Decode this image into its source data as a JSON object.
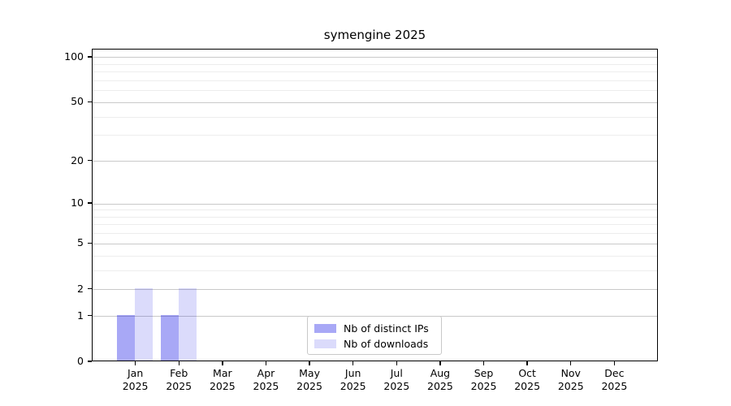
{
  "title": "symengine 2025",
  "chart_data": {
    "type": "bar",
    "title": "symengine 2025",
    "x_tick_months": [
      "Jan",
      "Feb",
      "Mar",
      "Apr",
      "May",
      "Jun",
      "Jul",
      "Aug",
      "Sep",
      "Oct",
      "Nov",
      "Dec"
    ],
    "x_tick_year": "2025",
    "series": [
      {
        "name": "Nb of distinct IPs",
        "fill": "rgba(0,0,230,0.34)",
        "values": [
          1,
          1,
          0,
          0,
          0,
          0,
          0,
          0,
          0,
          0,
          0,
          0
        ]
      },
      {
        "name": "Nb of downloads",
        "fill": "rgba(0,0,230,0.14)",
        "values": [
          2,
          2,
          0,
          0,
          0,
          0,
          0,
          0,
          0,
          0,
          0,
          0
        ]
      }
    ],
    "y_axis": {
      "labeled_ticks": [
        0,
        1,
        2,
        5,
        10,
        20,
        50,
        100
      ],
      "minor_ticks": [
        3,
        4,
        6,
        7,
        8,
        9,
        30,
        40,
        60,
        70,
        80,
        90
      ],
      "scale": "log1p",
      "ylim": [
        0,
        113
      ]
    },
    "grid": true,
    "legend_position": "lower center",
    "colors": {
      "major_grid": "#c9c9c9",
      "minor_grid": "#ededed",
      "spine": "#000000",
      "background": "#ffffff"
    }
  }
}
